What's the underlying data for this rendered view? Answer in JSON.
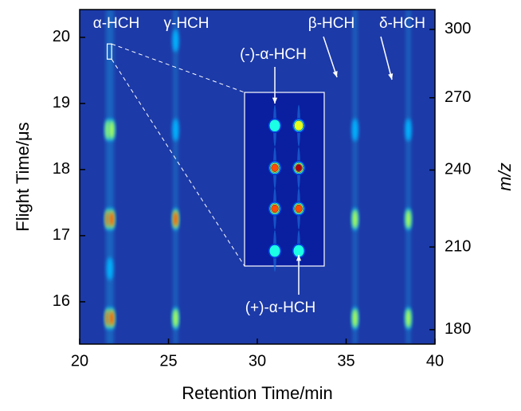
{
  "chart_data": {
    "type": "heatmap",
    "x_label": "Retention Time/min",
    "y_label": "Flight Time/μs",
    "y2_label": "m/z",
    "xlim": [
      20,
      40
    ],
    "xticks": [
      20,
      25,
      30,
      35,
      40
    ],
    "ylim": [
      15.36,
      20.42
    ],
    "yticks": [
      16,
      17,
      18,
      19,
      20
    ],
    "y2lim": [
      175,
      309
    ],
    "y2scale": "sqrt",
    "y2ticks": [
      180,
      210,
      240,
      270,
      300
    ],
    "streaks": [
      21.6,
      21.8,
      25.4,
      35.5,
      38.5
    ],
    "peaks": [
      {
        "x": 21.6,
        "y": 15.75,
        "intensity": 0.95
      },
      {
        "x": 21.8,
        "y": 15.75,
        "intensity": 0.95
      },
      {
        "x": 21.6,
        "y": 17.25,
        "intensity": 0.97
      },
      {
        "x": 21.8,
        "y": 17.25,
        "intensity": 0.97
      },
      {
        "x": 21.6,
        "y": 18.6,
        "intensity": 0.55
      },
      {
        "x": 21.8,
        "y": 18.6,
        "intensity": 0.55
      },
      {
        "x": 21.7,
        "y": 16.5,
        "intensity": 0.4
      },
      {
        "x": 25.4,
        "y": 15.75,
        "intensity": 0.75
      },
      {
        "x": 25.4,
        "y": 17.25,
        "intensity": 0.8
      },
      {
        "x": 25.4,
        "y": 18.6,
        "intensity": 0.5
      },
      {
        "x": 25.4,
        "y": 19.95,
        "intensity": 0.5
      },
      {
        "x": 35.5,
        "y": 15.75,
        "intensity": 0.6
      },
      {
        "x": 35.5,
        "y": 17.25,
        "intensity": 0.65
      },
      {
        "x": 35.5,
        "y": 18.6,
        "intensity": 0.4
      },
      {
        "x": 38.5,
        "y": 15.75,
        "intensity": 0.65
      },
      {
        "x": 38.5,
        "y": 17.25,
        "intensity": 0.75
      },
      {
        "x": 38.5,
        "y": 18.6,
        "intensity": 0.5
      }
    ],
    "inset": {
      "xlim": [
        21.55,
        21.8
      ],
      "ylim": [
        19.67,
        19.9
      ],
      "peaks": [
        {
          "x": 21.645,
          "y": 19.856,
          "intensity": 0.5
        },
        {
          "x": 21.72,
          "y": 19.856,
          "intensity": 0.6
        },
        {
          "x": 21.645,
          "y": 19.8,
          "intensity": 0.9
        },
        {
          "x": 21.72,
          "y": 19.8,
          "intensity": 0.95
        },
        {
          "x": 21.645,
          "y": 19.746,
          "intensity": 0.9
        },
        {
          "x": 21.72,
          "y": 19.746,
          "intensity": 0.9
        },
        {
          "x": 21.645,
          "y": 19.69,
          "intensity": 0.45
        },
        {
          "x": 21.72,
          "y": 19.69,
          "intensity": 0.5
        }
      ]
    },
    "annotations": [
      "α-HCH",
      "γ-HCH",
      "β-HCH",
      "δ-HCH",
      "(-)-α-HCH",
      "(+)-α-HCH"
    ]
  }
}
